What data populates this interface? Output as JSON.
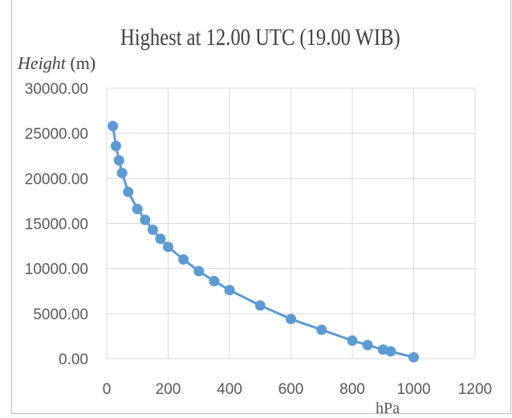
{
  "chart_data": {
    "type": "scatter",
    "title": "Highest at 12.00 UTC (19.00 WIB)",
    "ylabel_italic": "Height",
    "ylabel_unit": "(m)",
    "xlabel": "hPa",
    "xlim": [
      0,
      1200
    ],
    "ylim": [
      0,
      30000
    ],
    "xticks": [
      "0",
      "200",
      "400",
      "600",
      "800",
      "1000",
      "1200"
    ],
    "yticks": [
      "0.00",
      "5000.00",
      "10000.00",
      "15000.00",
      "20000.00",
      "25000.00",
      "30000.00"
    ],
    "grid": true,
    "legend": "none",
    "series": [
      {
        "color": "#5b9bd5",
        "points": [
          [
            20,
            25800
          ],
          [
            30,
            23600
          ],
          [
            40,
            22000
          ],
          [
            50,
            20600
          ],
          [
            70,
            18500
          ],
          [
            100,
            16600
          ],
          [
            125,
            15400
          ],
          [
            150,
            14300
          ],
          [
            175,
            13300
          ],
          [
            200,
            12400
          ],
          [
            250,
            11000
          ],
          [
            300,
            9700
          ],
          [
            350,
            8600
          ],
          [
            400,
            7600
          ],
          [
            500,
            5900
          ],
          [
            600,
            4400
          ],
          [
            700,
            3200
          ],
          [
            800,
            2000
          ],
          [
            850,
            1500
          ],
          [
            900,
            1000
          ],
          [
            925,
            800
          ],
          [
            1000,
            150
          ]
        ]
      }
    ]
  }
}
